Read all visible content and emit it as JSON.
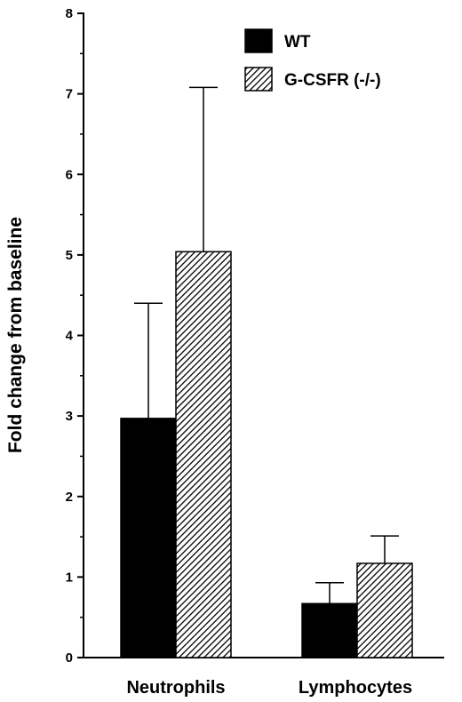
{
  "chart_data": {
    "type": "bar",
    "title": "",
    "xlabel": "",
    "ylabel": "Fold change from baseline",
    "ylim": [
      0,
      8
    ],
    "yticks": [
      0,
      1,
      2,
      3,
      4,
      5,
      6,
      7,
      8
    ],
    "categories": [
      "Neutrophils",
      "Lymphocytes"
    ],
    "series": [
      {
        "name": "WT",
        "values": [
          2.97,
          0.67
        ],
        "error_upper": [
          4.4,
          0.93
        ],
        "fill": "solid",
        "color": "#000000"
      },
      {
        "name": "G-CSFR (-/-)",
        "values": [
          5.04,
          1.17
        ],
        "error_upper": [
          7.08,
          1.51
        ],
        "fill": "hatched",
        "color": "#000000"
      }
    ],
    "legend_position": "top-right",
    "grid": false
  }
}
